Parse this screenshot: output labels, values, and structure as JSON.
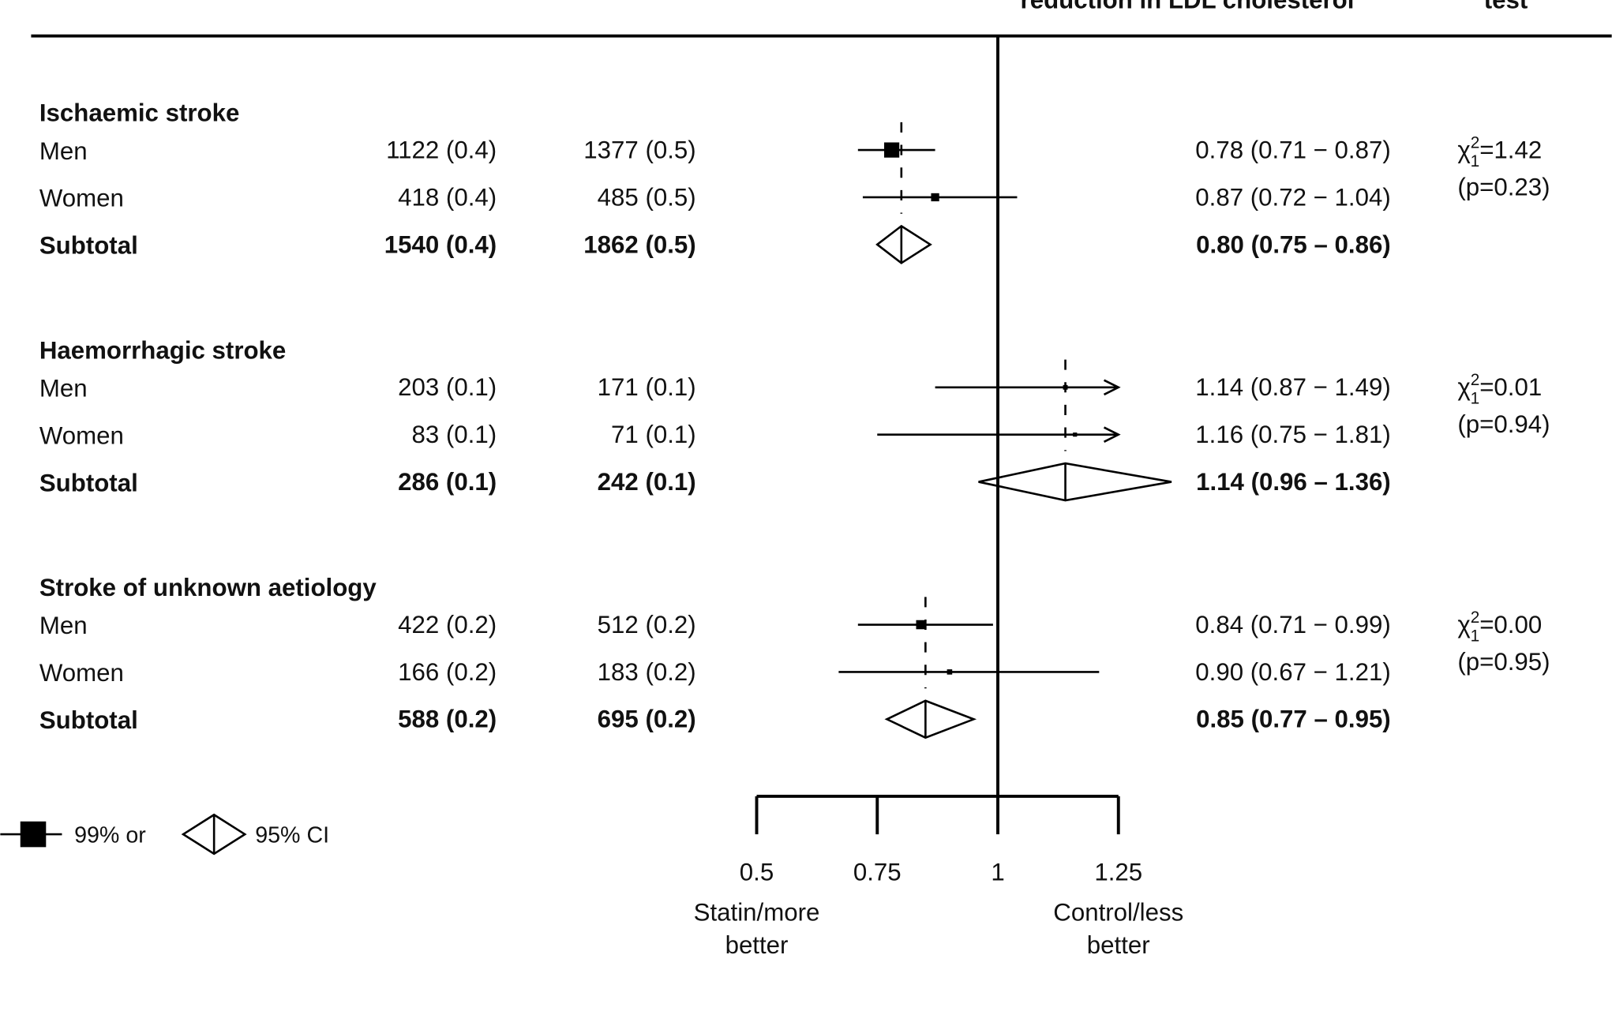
{
  "chart_data": {
    "type": "forest",
    "headers": [
      "reduction in LDL cholesterol",
      "test"
    ],
    "xlim": [
      0.5,
      1.25
    ],
    "xticks": [
      0.5,
      0.75,
      1,
      1.25
    ],
    "x_labels": [
      [
        "Statin/more",
        "better"
      ],
      [
        "Control/less",
        "better"
      ]
    ],
    "legend": {
      "square": "99% or",
      "diamond": "95% CI"
    },
    "groups": [
      {
        "title": "Ischaemic stroke",
        "rows": [
          {
            "label": "Men",
            "statin": "1122 (0.4)",
            "control": "1377 (0.5)",
            "value": 0.78,
            "low": 0.71,
            "high": 0.87,
            "value_label": "0.78 (0.71 − 0.87)"
          },
          {
            "label": "Women",
            "statin": "418 (0.4)",
            "control": "485 (0.5)",
            "value": 0.87,
            "low": 0.72,
            "high": 1.04,
            "value_label": "0.87 (0.72 − 1.04)"
          }
        ],
        "subtotal": {
          "label": "Subtotal",
          "statin": "1540 (0.4)",
          "control": "1862 (0.5)",
          "value": 0.8,
          "low": 0.75,
          "high": 0.86,
          "value_label": "0.80 (0.75 – 0.86)"
        },
        "test": {
          "symbol": "χ",
          "sup": "2",
          "sub": "1",
          "stat": "=1.42",
          "p": "(p=0.23)"
        }
      },
      {
        "title": "Haemorrhagic stroke",
        "rows": [
          {
            "label": "Men",
            "statin": "203 (0.1)",
            "control": "171 (0.1)",
            "value": 1.14,
            "low": 0.87,
            "high": 1.49,
            "value_label": "1.14 (0.87 − 1.49)"
          },
          {
            "label": "Women",
            "statin": "83 (0.1)",
            "control": "71 (0.1)",
            "value": 1.16,
            "low": 0.75,
            "high": 1.81,
            "value_label": "1.16 (0.75 − 1.81)"
          }
        ],
        "subtotal": {
          "label": "Subtotal",
          "statin": "286 (0.1)",
          "control": "242 (0.1)",
          "value": 1.14,
          "low": 0.96,
          "high": 1.36,
          "value_label": "1.14 (0.96 – 1.36)"
        },
        "test": {
          "symbol": "χ",
          "sup": "2",
          "sub": "1",
          "stat": "=0.01",
          "p": "(p=0.94)"
        }
      },
      {
        "title": "Stroke of unknown aetiology",
        "rows": [
          {
            "label": "Men",
            "statin": "422 (0.2)",
            "control": "512 (0.2)",
            "value": 0.84,
            "low": 0.71,
            "high": 0.99,
            "value_label": "0.84 (0.71 − 0.99)"
          },
          {
            "label": "Women",
            "statin": "166 (0.2)",
            "control": "183 (0.2)",
            "value": 0.9,
            "low": 0.67,
            "high": 1.21,
            "value_label": "0.90 (0.67 − 1.21)"
          }
        ],
        "subtotal": {
          "label": "Subtotal",
          "statin": "588 (0.2)",
          "control": "695 (0.2)",
          "value": 0.85,
          "low": 0.77,
          "high": 0.95,
          "value_label": "0.85 (0.77 – 0.95)"
        },
        "test": {
          "symbol": "χ",
          "sup": "2",
          "sub": "1",
          "stat": "=0.00",
          "p": "(p=0.95)"
        }
      }
    ]
  }
}
